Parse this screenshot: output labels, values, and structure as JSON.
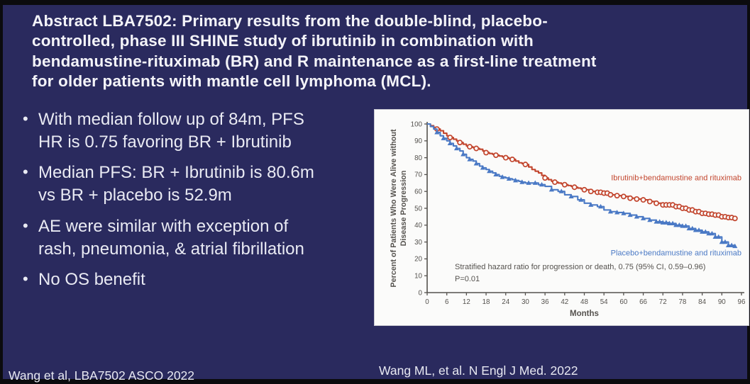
{
  "slide": {
    "title": "Abstract LBA7502: Primary results from the double-blind, placebo-\ncontrolled, phase III SHINE study of ibrutinib in combination with\nbendamustine-rituximab (BR) and R maintenance as a first-line treatment\nfor older patients with mantle cell lymphoma (MCL).",
    "bullets": [
      "With median follow up of 84m, PFS\nHR is 0.75 favoring BR + Ibrutinib",
      "Median PFS: BR + Ibrutinib is 80.6m\nvs BR + placebo is 52.9m",
      "AE were similar with exception of\nrash, pneumonia, & atrial fibrillation",
      "No OS benefit"
    ],
    "footer_left": "Wang et al, LBA7502 ASCO 2022",
    "footer_right": "Wang ML, et al. N Engl J Med. 2022"
  },
  "colors": {
    "slide_bg": "#2a2a5e",
    "frame": "#0b0b0e",
    "slide_text": "#e9eaf3",
    "panel_bg": "#fbfbfa",
    "axis": "#55524e",
    "chart_text": "#55524e",
    "red_series": "#c2452d",
    "blue_series": "#4a79c5"
  },
  "chart_data": {
    "type": "line",
    "subtype": "kaplan-meier-step",
    "title": "",
    "xlabel": "Months",
    "ylabel": "Percent of Patients Who Were Alive without Disease Progression",
    "ylabel_lines": [
      "Percent of Patients Who Were Alive without",
      "Disease Progression"
    ],
    "xlim": [
      0,
      96
    ],
    "ylim": [
      0,
      100
    ],
    "xticks": [
      0,
      6,
      12,
      18,
      24,
      30,
      36,
      42,
      48,
      54,
      60,
      66,
      72,
      78,
      84,
      90,
      96
    ],
    "yticks": [
      0,
      10,
      20,
      30,
      40,
      50,
      60,
      70,
      80,
      90,
      100
    ],
    "grid": false,
    "legend_position": "inline-labels",
    "annotation_lines": [
      "Stratified hazard ratio for progression or death, 0.75 (95% CI, 0.59–0.96)",
      "P=0.01"
    ],
    "series": [
      {
        "name": "Ibrutinib+bendamustine and rituximab",
        "color": "#c2452d",
        "marker": "open-circle",
        "label_anchor_month": 96,
        "label_pct": 66.5,
        "points": [
          [
            0,
            100
          ],
          [
            1,
            99
          ],
          [
            2,
            98
          ],
          [
            3,
            97
          ],
          [
            4,
            96
          ],
          [
            5,
            94.5
          ],
          [
            6,
            93
          ],
          [
            7,
            92
          ],
          [
            8,
            91
          ],
          [
            9,
            90
          ],
          [
            10,
            89
          ],
          [
            11,
            88
          ],
          [
            12,
            87
          ],
          [
            13,
            86.5
          ],
          [
            14,
            86
          ],
          [
            15,
            85.5
          ],
          [
            16,
            85
          ],
          [
            17,
            84
          ],
          [
            18,
            83
          ],
          [
            19,
            82.5
          ],
          [
            20,
            82
          ],
          [
            21,
            81.5
          ],
          [
            22,
            81
          ],
          [
            23,
            80.5
          ],
          [
            24,
            80
          ],
          [
            25,
            79.5
          ],
          [
            26,
            79
          ],
          [
            27,
            78
          ],
          [
            28,
            77
          ],
          [
            29,
            76.5
          ],
          [
            30,
            76
          ],
          [
            31,
            74.5
          ],
          [
            32,
            73
          ],
          [
            33,
            72
          ],
          [
            34,
            71
          ],
          [
            35,
            69.5
          ],
          [
            36,
            68
          ],
          [
            37,
            67
          ],
          [
            38,
            66
          ],
          [
            39,
            65.5
          ],
          [
            40,
            65
          ],
          [
            41,
            64.5
          ],
          [
            42,
            64
          ],
          [
            43,
            63.5
          ],
          [
            44,
            63
          ],
          [
            45,
            62.5
          ],
          [
            46,
            62
          ],
          [
            47,
            61.5
          ],
          [
            48,
            61
          ],
          [
            50,
            60
          ],
          [
            52,
            59.5
          ],
          [
            54,
            59
          ],
          [
            56,
            58
          ],
          [
            58,
            57.5
          ],
          [
            60,
            57
          ],
          [
            62,
            56
          ],
          [
            64,
            55.5
          ],
          [
            66,
            55
          ],
          [
            68,
            54
          ],
          [
            70,
            53
          ],
          [
            72,
            52
          ],
          [
            74,
            52
          ],
          [
            76,
            51
          ],
          [
            78,
            50
          ],
          [
            80,
            49
          ],
          [
            82,
            48
          ],
          [
            84,
            47
          ],
          [
            86,
            46.5
          ],
          [
            88,
            46
          ],
          [
            90,
            45
          ],
          [
            92,
            44.5
          ],
          [
            94,
            44
          ]
        ],
        "censor_months": [
          3,
          7,
          10,
          13,
          15,
          18,
          21,
          24,
          26,
          30,
          36,
          39,
          42,
          45,
          48,
          50,
          52,
          53,
          54,
          55,
          56,
          58,
          60,
          62,
          64,
          66,
          68,
          70,
          72,
          73,
          74,
          75,
          76,
          77,
          78,
          79,
          80,
          81,
          82,
          83,
          84,
          85,
          86,
          87,
          88,
          89,
          90,
          91,
          92,
          93,
          94
        ]
      },
      {
        "name": "Placebo+bendamustine and rituximab",
        "color": "#4a79c5",
        "marker": "triangle",
        "label_anchor_month": 96,
        "label_pct": 22,
        "points": [
          [
            0,
            100
          ],
          [
            1,
            98.5
          ],
          [
            2,
            97
          ],
          [
            3,
            95
          ],
          [
            4,
            93
          ],
          [
            5,
            91.5
          ],
          [
            6,
            90
          ],
          [
            7,
            88.5
          ],
          [
            8,
            87
          ],
          [
            9,
            85.5
          ],
          [
            10,
            84
          ],
          [
            11,
            82
          ],
          [
            12,
            80
          ],
          [
            13,
            79
          ],
          [
            14,
            78
          ],
          [
            15,
            76.5
          ],
          [
            16,
            75
          ],
          [
            17,
            74
          ],
          [
            18,
            73
          ],
          [
            19,
            72
          ],
          [
            20,
            71
          ],
          [
            21,
            70
          ],
          [
            22,
            69
          ],
          [
            23,
            68.5
          ],
          [
            24,
            68
          ],
          [
            25,
            67.5
          ],
          [
            26,
            67
          ],
          [
            27,
            66.5
          ],
          [
            28,
            66
          ],
          [
            29,
            65.5
          ],
          [
            30,
            65
          ],
          [
            32,
            65
          ],
          [
            34,
            64
          ],
          [
            36,
            63
          ],
          [
            38,
            61
          ],
          [
            40,
            60
          ],
          [
            42,
            58
          ],
          [
            44,
            57
          ],
          [
            46,
            55
          ],
          [
            48,
            53
          ],
          [
            50,
            52
          ],
          [
            52,
            51
          ],
          [
            54,
            49
          ],
          [
            56,
            48
          ],
          [
            58,
            47.5
          ],
          [
            60,
            47
          ],
          [
            62,
            46
          ],
          [
            64,
            45
          ],
          [
            66,
            44
          ],
          [
            68,
            43
          ],
          [
            70,
            42
          ],
          [
            72,
            41.5
          ],
          [
            74,
            41
          ],
          [
            76,
            40
          ],
          [
            78,
            39.5
          ],
          [
            80,
            38
          ],
          [
            82,
            37
          ],
          [
            84,
            36
          ],
          [
            86,
            35
          ],
          [
            88,
            33
          ],
          [
            90,
            30
          ],
          [
            92,
            28
          ],
          [
            94,
            27.5
          ]
        ],
        "censor_months": [
          3,
          5,
          7,
          9,
          11,
          13,
          15,
          17,
          19,
          21,
          23,
          25,
          27,
          29,
          31,
          33,
          35,
          38,
          41,
          44,
          47,
          50,
          53,
          56,
          58,
          60,
          62,
          64,
          66,
          68,
          70,
          71,
          72,
          73,
          74,
          75,
          76,
          77,
          78,
          79,
          80,
          81,
          82,
          83,
          84,
          85,
          86,
          87,
          88,
          89,
          90,
          91,
          92,
          93,
          94
        ]
      }
    ]
  }
}
